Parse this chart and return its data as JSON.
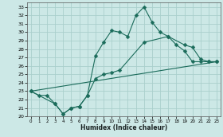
{
  "title": "",
  "xlabel": "Humidex (Indice chaleur)",
  "bg_color": "#cce8e6",
  "grid_color": "#aacfcc",
  "line_color": "#1a6b5a",
  "xlim": [
    -0.5,
    23.5
  ],
  "ylim": [
    20,
    33.5
  ],
  "yticks": [
    20,
    21,
    22,
    23,
    24,
    25,
    26,
    27,
    28,
    29,
    30,
    31,
    32,
    33
  ],
  "xticks": [
    0,
    1,
    2,
    3,
    4,
    5,
    6,
    7,
    8,
    9,
    10,
    11,
    12,
    13,
    14,
    15,
    16,
    17,
    18,
    19,
    20,
    21,
    22,
    23
  ],
  "line1_x": [
    0,
    1,
    2,
    3,
    4,
    5,
    6,
    7,
    8,
    9,
    10,
    11,
    12,
    13,
    14,
    15,
    16,
    17,
    18,
    19,
    20,
    21,
    22,
    23
  ],
  "line1_y": [
    23.0,
    22.5,
    22.5,
    21.5,
    20.3,
    21.0,
    21.2,
    22.5,
    27.2,
    28.8,
    30.2,
    30.0,
    29.5,
    32.0,
    33.0,
    31.2,
    30.0,
    29.5,
    28.5,
    27.8,
    26.5,
    26.5,
    26.5,
    26.5
  ],
  "line2_x": [
    0,
    3,
    4,
    5,
    6,
    7,
    8,
    9,
    10,
    11,
    14,
    17,
    19,
    20,
    21,
    22,
    23
  ],
  "line2_y": [
    23.0,
    21.5,
    20.3,
    21.0,
    21.2,
    22.5,
    24.5,
    25.0,
    25.2,
    25.5,
    28.8,
    29.5,
    28.5,
    28.2,
    26.8,
    26.5,
    26.5
  ],
  "line3_x": [
    0,
    23
  ],
  "line3_y": [
    23.0,
    26.5
  ],
  "marker": "D",
  "marker_size": 2.5,
  "linewidth": 0.8
}
